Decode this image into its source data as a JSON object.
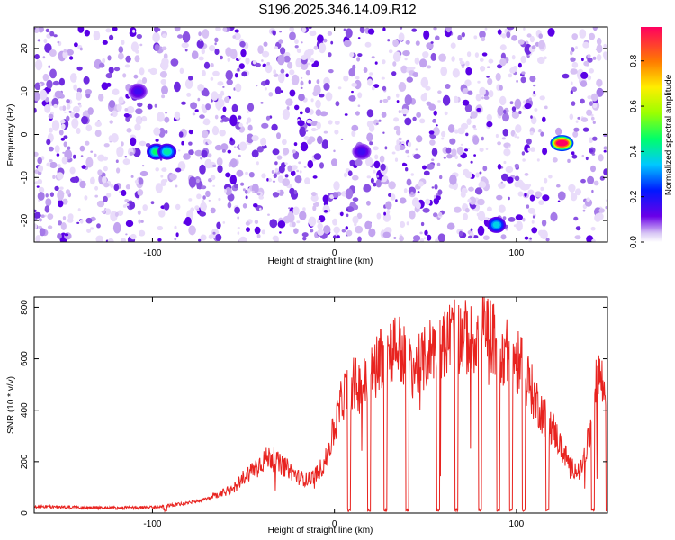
{
  "title": "S196.2025.346.14.09.R12",
  "chart_data": [
    {
      "type": "heatmap",
      "xlabel": "Height of straight line (km)",
      "ylabel": "Frequency (Hz)",
      "xlim": [
        -165,
        150
      ],
      "ylim": [
        -25,
        25
      ],
      "x_ticks": [
        -100,
        0,
        100
      ],
      "y_ticks": [
        -20,
        -10,
        0,
        10,
        20
      ],
      "colorbar": {
        "label": "Normalized spectral amplitude",
        "range": [
          0,
          0.95
        ],
        "ticks": [
          0.0,
          0.2,
          0.4,
          0.6,
          0.8
        ],
        "tick_labels": [
          "0.0",
          "0.2",
          "0.4",
          "0.6",
          "0.8"
        ]
      },
      "hotspots": [
        {
          "x": -98,
          "y": -4,
          "amplitude": 0.4
        },
        {
          "x": -92,
          "y": -4,
          "amplitude": 0.35
        },
        {
          "x": -108,
          "y": 10,
          "amplitude": 0.1
        },
        {
          "x": 89,
          "y": -21,
          "amplitude": 0.3
        },
        {
          "x": 125,
          "y": -2,
          "amplitude": 0.95
        },
        {
          "x": 15,
          "y": -4,
          "amplitude": 0.1
        }
      ]
    },
    {
      "type": "line",
      "xlabel": "Height of straight line (km)",
      "ylabel": "SNR (10 * v/v)",
      "xlim": [
        -165,
        150
      ],
      "ylim": [
        0,
        840
      ],
      "x_ticks": [
        -100,
        0,
        100
      ],
      "y_ticks": [
        0,
        200,
        400,
        600,
        800
      ],
      "series": [
        {
          "color": "#e8231f",
          "x": [
            -165,
            -140,
            -120,
            -100,
            -90,
            -80,
            -70,
            -60,
            -55,
            -50,
            -45,
            -40,
            -35,
            -30,
            -25,
            -20,
            -15,
            -10,
            -5,
            0,
            5,
            10,
            15,
            20,
            25,
            30,
            35,
            40,
            45,
            50,
            55,
            60,
            65,
            70,
            75,
            80,
            85,
            90,
            95,
            100,
            105,
            110,
            115,
            120,
            125,
            130,
            135,
            140,
            145,
            150
          ],
          "y": [
            25,
            22,
            20,
            22,
            30,
            40,
            55,
            80,
            100,
            140,
            170,
            200,
            220,
            190,
            170,
            140,
            130,
            150,
            200,
            330,
            460,
            500,
            490,
            530,
            610,
            640,
            650,
            580,
            560,
            600,
            660,
            650,
            700,
            690,
            670,
            710,
            700,
            650,
            620,
            590,
            540,
            450,
            380,
            330,
            250,
            180,
            160,
            290,
            560,
            420
          ]
        }
      ],
      "dropouts_x": [
        -93,
        8,
        19,
        28,
        40,
        57,
        67,
        80,
        90,
        97,
        104,
        117,
        142,
        150
      ]
    }
  ]
}
